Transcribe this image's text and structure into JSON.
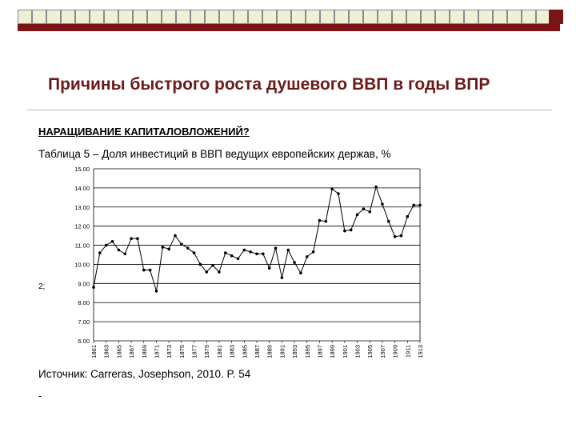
{
  "slide": {
    "title": "Причины быстрого роста душевого ВВП в годы ВПР",
    "subheading": "НАРАЩИВАНИЕ КАПИТАЛОВЛОЖЕНИЙ?",
    "caption": "Таблица 5 – Доля инвестиций в ВВП ведущих европейских держав, %",
    "side_note": "2;",
    "source": "Источник: Carreras, Josephson, 2010. P. 54",
    "trailing_mark": "-"
  },
  "colors": {
    "bar": "#7a1416",
    "title": "#6b1a1a",
    "line": "#000000"
  },
  "chart_data": {
    "type": "line",
    "title": "",
    "xlabel": "",
    "ylabel": "",
    "xlim": [
      1861,
      1913
    ],
    "ylim": [
      6,
      15
    ],
    "grid": "horizontal",
    "legend": "none",
    "x_ticks": [
      "1861",
      "1863",
      "1865",
      "1867",
      "1869",
      "1871",
      "1873",
      "1875",
      "1877",
      "1879",
      "1881",
      "1883",
      "1885",
      "1887",
      "1889",
      "1891",
      "1893",
      "1895",
      "1897",
      "1899",
      "1901",
      "1903",
      "1905",
      "1907",
      "1909",
      "1911",
      "1913"
    ],
    "y_ticks": [
      "6.00",
      "7.00",
      "8.00",
      "9.00",
      "10.00",
      "11.00",
      "12.00",
      "13.00",
      "14.00",
      "15.00"
    ],
    "series": [
      {
        "x": [
          1861,
          1862,
          1863,
          1864,
          1865,
          1866,
          1867,
          1868,
          1869,
          1870,
          1871,
          1872,
          1873,
          1874,
          1875,
          1876,
          1877,
          1878,
          1879,
          1880,
          1881,
          1882,
          1883,
          1884,
          1885,
          1886,
          1887,
          1888,
          1889,
          1890,
          1891,
          1892,
          1893,
          1894,
          1895,
          1896,
          1897,
          1898,
          1899,
          1900,
          1901,
          1902,
          1903,
          1904,
          1905,
          1906,
          1907,
          1908,
          1909,
          1910,
          1911,
          1912,
          1913
        ],
        "values": [
          8.8,
          10.6,
          11.0,
          11.2,
          10.75,
          10.55,
          11.35,
          11.35,
          9.7,
          9.7,
          8.6,
          10.9,
          10.8,
          11.5,
          11.05,
          10.85,
          10.6,
          10.0,
          9.6,
          9.95,
          9.6,
          10.6,
          10.45,
          10.3,
          10.75,
          10.65,
          10.55,
          10.55,
          9.8,
          10.85,
          9.3,
          10.75,
          10.1,
          9.55,
          10.4,
          10.65,
          12.3,
          12.25,
          13.95,
          13.7,
          11.75,
          11.8,
          12.6,
          12.9,
          12.75,
          14.05,
          13.15,
          12.25,
          11.45,
          11.5,
          12.5,
          13.1,
          13.1
        ]
      }
    ]
  }
}
